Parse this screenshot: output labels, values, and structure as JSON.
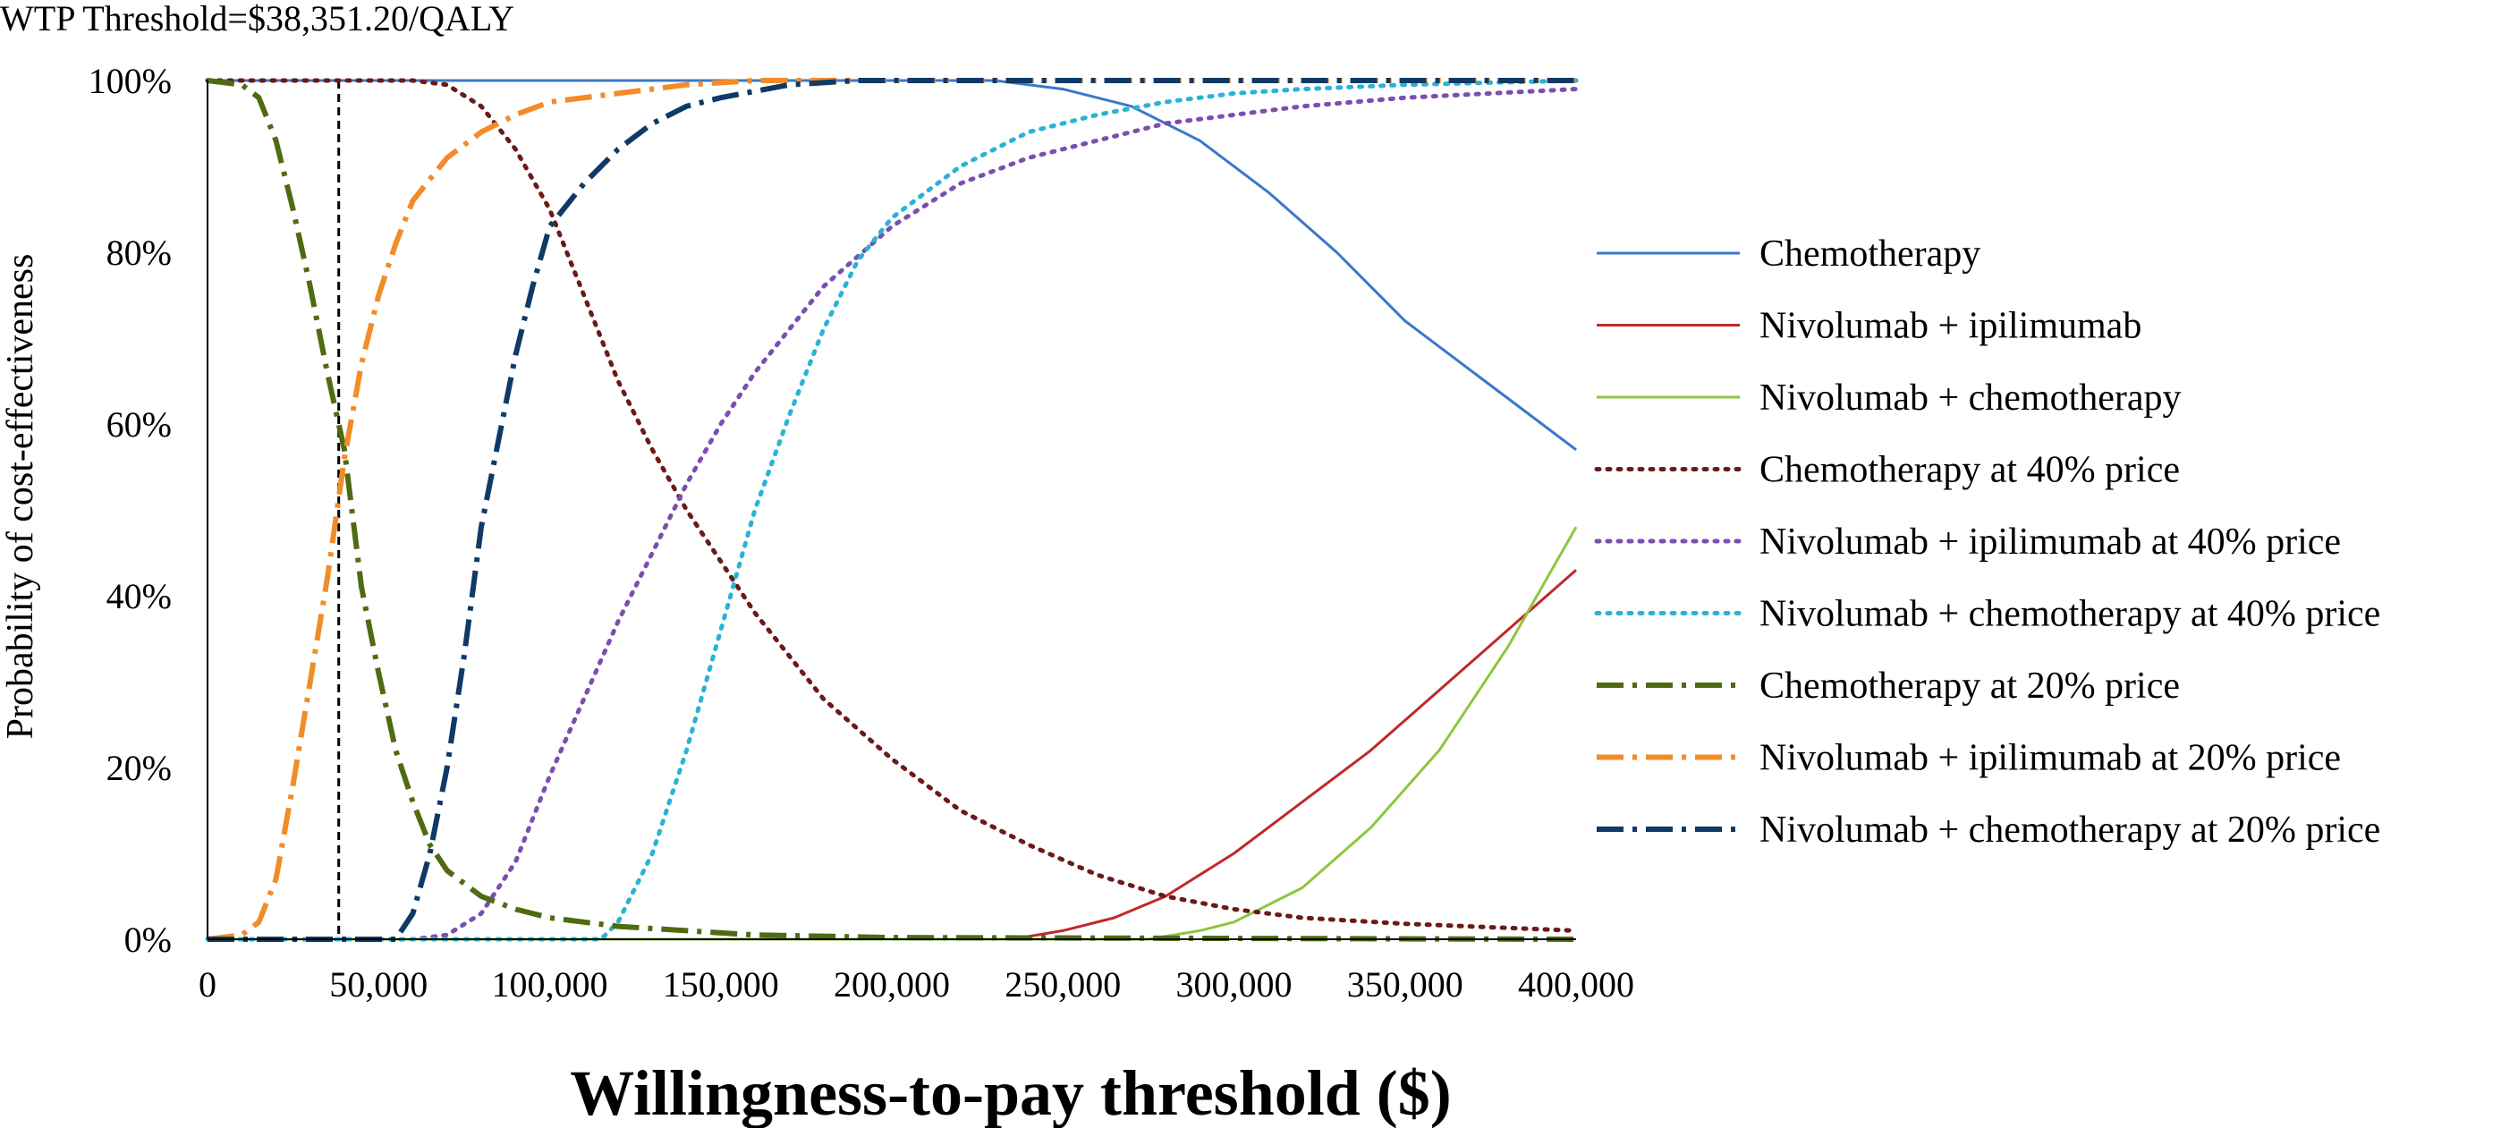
{
  "chart_data": {
    "type": "line",
    "title": "",
    "xlabel": "Willingness-to-pay threshold ($)",
    "ylabel": "Probability of cost-effectiveness",
    "xlim": [
      0,
      400000
    ],
    "ylim": [
      0,
      100
    ],
    "x_ticks": [
      "0",
      "50,000",
      "100,000",
      "150,000",
      "200,000",
      "250,000",
      "300,000",
      "350,000",
      "400,000"
    ],
    "y_ticks": [
      "0%",
      "20%",
      "40%",
      "60%",
      "80%",
      "100%"
    ],
    "grid": false,
    "legend_position": "right",
    "annotation": {
      "text": "WTP Threshold=$38,351.20/QALY",
      "x": 38351.2
    },
    "series": [
      {
        "name": "Chemotherapy",
        "color": "#3a78c9",
        "style": "solid",
        "points": [
          [
            0,
            100
          ],
          [
            230000,
            100
          ],
          [
            250000,
            99
          ],
          [
            270000,
            97
          ],
          [
            290000,
            93
          ],
          [
            310000,
            87
          ],
          [
            330000,
            80
          ],
          [
            350000,
            72
          ],
          [
            370000,
            66
          ],
          [
            390000,
            60
          ],
          [
            400000,
            57
          ]
        ]
      },
      {
        "name": "Nivolumab + ipilimumab",
        "color": "#c0282a",
        "style": "solid",
        "points": [
          [
            0,
            0
          ],
          [
            235000,
            0
          ],
          [
            250000,
            1
          ],
          [
            265000,
            2.5
          ],
          [
            280000,
            5
          ],
          [
            300000,
            10
          ],
          [
            320000,
            16
          ],
          [
            340000,
            22
          ],
          [
            360000,
            29
          ],
          [
            380000,
            36
          ],
          [
            400000,
            43
          ]
        ]
      },
      {
        "name": "Nivolumab + chemotherapy",
        "color": "#8dc63f",
        "style": "solid",
        "points": [
          [
            0,
            0
          ],
          [
            275000,
            0
          ],
          [
            290000,
            1
          ],
          [
            300000,
            2
          ],
          [
            320000,
            6
          ],
          [
            340000,
            13
          ],
          [
            360000,
            22
          ],
          [
            380000,
            34
          ],
          [
            400000,
            48
          ]
        ]
      },
      {
        "name": "Chemotherapy at 40% price",
        "color": "#6b1a1a",
        "style": "dotted",
        "points": [
          [
            0,
            100
          ],
          [
            60000,
            100
          ],
          [
            70000,
            99.5
          ],
          [
            80000,
            97
          ],
          [
            90000,
            92
          ],
          [
            100000,
            85
          ],
          [
            110000,
            75
          ],
          [
            120000,
            65
          ],
          [
            130000,
            57
          ],
          [
            140000,
            50
          ],
          [
            150000,
            44
          ],
          [
            160000,
            38
          ],
          [
            180000,
            28
          ],
          [
            200000,
            21
          ],
          [
            220000,
            15
          ],
          [
            240000,
            11
          ],
          [
            260000,
            7.5
          ],
          [
            280000,
            5
          ],
          [
            300000,
            3.5
          ],
          [
            320000,
            2.5
          ],
          [
            350000,
            1.8
          ],
          [
            400000,
            1
          ]
        ]
      },
      {
        "name": "Nivolumab + ipilimumab at 40% price",
        "color": "#7b4fb0",
        "style": "dotted",
        "points": [
          [
            0,
            0
          ],
          [
            60000,
            0
          ],
          [
            70000,
            0.5
          ],
          [
            80000,
            3
          ],
          [
            90000,
            9
          ],
          [
            100000,
            19
          ],
          [
            110000,
            28
          ],
          [
            120000,
            37
          ],
          [
            130000,
            45
          ],
          [
            140000,
            53
          ],
          [
            150000,
            60
          ],
          [
            160000,
            66
          ],
          [
            180000,
            76
          ],
          [
            200000,
            83
          ],
          [
            220000,
            88
          ],
          [
            240000,
            91
          ],
          [
            260000,
            93
          ],
          [
            280000,
            95
          ],
          [
            300000,
            96
          ],
          [
            320000,
            97
          ],
          [
            350000,
            98
          ],
          [
            400000,
            99
          ]
        ]
      },
      {
        "name": "Nivolumab + chemotherapy at 40% price",
        "color": "#2ab3d6",
        "style": "dotted",
        "points": [
          [
            0,
            0
          ],
          [
            115000,
            0
          ],
          [
            120000,
            2
          ],
          [
            130000,
            10
          ],
          [
            140000,
            22
          ],
          [
            150000,
            36
          ],
          [
            160000,
            50
          ],
          [
            170000,
            61
          ],
          [
            180000,
            71
          ],
          [
            190000,
            79
          ],
          [
            200000,
            84
          ],
          [
            220000,
            90
          ],
          [
            240000,
            94
          ],
          [
            260000,
            96
          ],
          [
            280000,
            97.5
          ],
          [
            300000,
            98.5
          ],
          [
            320000,
            99
          ],
          [
            350000,
            99.5
          ],
          [
            400000,
            100
          ]
        ]
      },
      {
        "name": "Chemotherapy at 20% price",
        "color": "#4e6b12",
        "style": "dashdot",
        "points": [
          [
            0,
            100
          ],
          [
            10000,
            99.5
          ],
          [
            15000,
            98
          ],
          [
            20000,
            93
          ],
          [
            25000,
            85
          ],
          [
            30000,
            76
          ],
          [
            35000,
            66
          ],
          [
            40000,
            57
          ],
          [
            45000,
            41
          ],
          [
            50000,
            31
          ],
          [
            55000,
            22
          ],
          [
            60000,
            16
          ],
          [
            65000,
            11
          ],
          [
            70000,
            8
          ],
          [
            80000,
            5
          ],
          [
            90000,
            3.5
          ],
          [
            100000,
            2.5
          ],
          [
            110000,
            2
          ],
          [
            120000,
            1.5
          ],
          [
            140000,
            1
          ],
          [
            160000,
            0.5
          ],
          [
            200000,
            0.2
          ],
          [
            400000,
            0
          ]
        ]
      },
      {
        "name": "Nivolumab + ipilimumab at 20% price",
        "color": "#f28c28",
        "style": "dashdot",
        "points": [
          [
            0,
            0
          ],
          [
            10000,
            0.5
          ],
          [
            15000,
            2
          ],
          [
            20000,
            7
          ],
          [
            25000,
            18
          ],
          [
            30000,
            30
          ],
          [
            35000,
            42
          ],
          [
            40000,
            56
          ],
          [
            45000,
            67
          ],
          [
            50000,
            75
          ],
          [
            55000,
            81
          ],
          [
            60000,
            86
          ],
          [
            70000,
            91
          ],
          [
            80000,
            94
          ],
          [
            90000,
            96
          ],
          [
            100000,
            97.5
          ],
          [
            120000,
            98.5
          ],
          [
            140000,
            99.5
          ],
          [
            160000,
            100
          ],
          [
            400000,
            100
          ]
        ]
      },
      {
        "name": "Nivolumab + chemotherapy at 20% price",
        "color": "#0f3a66",
        "style": "dashdot",
        "points": [
          [
            0,
            0
          ],
          [
            55000,
            0
          ],
          [
            60000,
            3
          ],
          [
            65000,
            10
          ],
          [
            70000,
            20
          ],
          [
            75000,
            33
          ],
          [
            80000,
            48
          ],
          [
            85000,
            58
          ],
          [
            90000,
            68
          ],
          [
            95000,
            76
          ],
          [
            100000,
            83
          ],
          [
            110000,
            88
          ],
          [
            120000,
            92
          ],
          [
            130000,
            95
          ],
          [
            140000,
            97
          ],
          [
            150000,
            98
          ],
          [
            170000,
            99.5
          ],
          [
            190000,
            100
          ],
          [
            400000,
            100
          ]
        ]
      }
    ]
  }
}
